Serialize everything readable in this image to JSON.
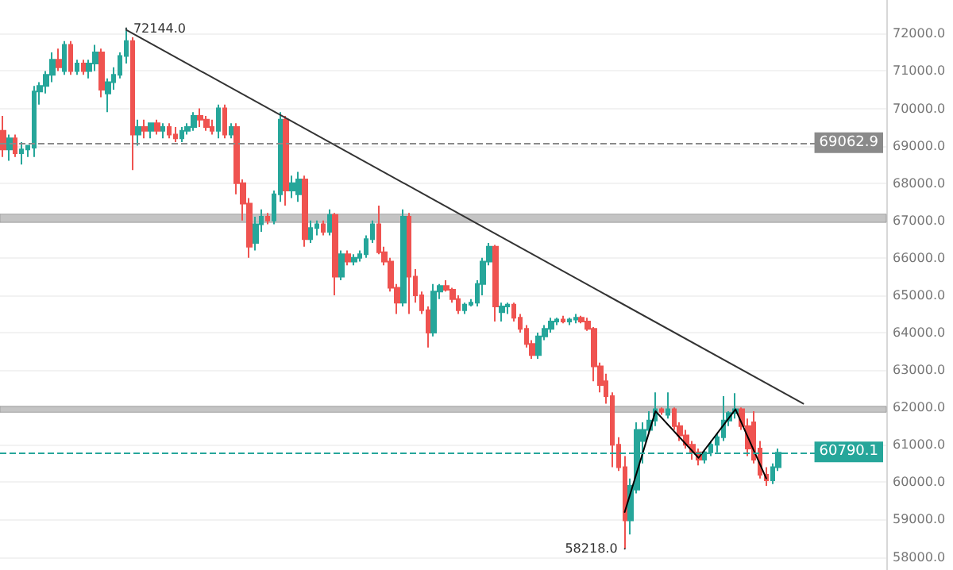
{
  "chart_data": {
    "type": "candlestick",
    "categories": [
      null,
      null,
      null,
      null,
      null,
      null,
      null,
      null,
      null,
      null,
      null,
      null,
      null,
      null,
      null,
      null,
      null,
      null,
      null,
      null,
      null,
      null,
      null,
      null,
      null,
      null,
      null,
      null,
      null,
      null,
      null,
      null,
      null,
      null,
      null,
      null,
      null,
      null,
      null,
      null,
      null,
      null,
      null,
      null,
      null,
      null,
      null,
      null,
      null,
      null,
      null,
      null,
      null,
      null,
      null,
      null,
      null,
      null,
      null,
      null,
      null,
      null,
      null,
      null,
      null,
      null,
      null,
      null,
      null,
      null,
      null,
      null,
      null,
      null,
      null,
      null,
      null,
      null,
      null,
      null,
      null,
      null,
      null,
      null,
      null,
      null,
      null,
      null,
      null,
      null,
      null,
      null,
      null,
      null,
      null,
      null,
      null,
      null,
      null,
      null,
      null,
      null,
      null,
      null,
      null,
      null,
      null,
      null,
      null,
      null,
      null,
      null,
      null,
      null,
      null,
      null,
      null,
      null,
      null,
      null,
      null,
      null,
      null,
      null,
      null,
      null,
      null,
      null,
      null,
      null,
      null,
      null,
      null,
      null,
      null,
      null,
      null,
      null,
      null,
      null,
      null,
      null,
      null,
      null
    ],
    "ohlc": [
      [
        69400,
        69800,
        68700,
        68900
      ],
      [
        68900,
        69300,
        68600,
        69200
      ],
      [
        69200,
        69300,
        68700,
        68800
      ],
      [
        68800,
        69100,
        68500,
        68900
      ],
      [
        68900,
        69000,
        68700,
        69000
      ],
      [
        68950,
        70600,
        68700,
        70450
      ],
      [
        70450,
        70700,
        70100,
        70600
      ],
      [
        70600,
        71000,
        70400,
        70900
      ],
      [
        70900,
        71500,
        70700,
        71300
      ],
      [
        71300,
        71600,
        71000,
        71100
      ],
      [
        71000,
        71800,
        70900,
        71700
      ],
      [
        71700,
        71800,
        70900,
        71000
      ],
      [
        71000,
        71300,
        70900,
        71200
      ],
      [
        71200,
        71300,
        70900,
        71000
      ],
      [
        71000,
        71300,
        70800,
        71200
      ],
      [
        71200,
        71700,
        71000,
        71500
      ],
      [
        71500,
        71600,
        70300,
        70500
      ],
      [
        70400,
        70800,
        69900,
        70700
      ],
      [
        70700,
        71100,
        70500,
        70900
      ],
      [
        70900,
        71500,
        70800,
        71400
      ],
      [
        71400,
        72144,
        71200,
        71800
      ],
      [
        71800,
        71900,
        68350,
        69300
      ],
      [
        69300,
        69700,
        69000,
        69500
      ],
      [
        69500,
        69700,
        69200,
        69400
      ],
      [
        69400,
        69600,
        69200,
        69600
      ],
      [
        69600,
        69700,
        69300,
        69400
      ],
      [
        69400,
        69600,
        69200,
        69500
      ],
      [
        69500,
        69600,
        69200,
        69300
      ],
      [
        69300,
        69500,
        69100,
        69200
      ],
      [
        69200,
        69500,
        69100,
        69400
      ],
      [
        69400,
        69600,
        69300,
        69500
      ],
      [
        69500,
        69900,
        69400,
        69800
      ],
      [
        69800,
        70000,
        69500,
        69700
      ],
      [
        69700,
        69800,
        69400,
        69500
      ],
      [
        69500,
        69700,
        69300,
        69400
      ],
      [
        69400,
        70100,
        69200,
        70000
      ],
      [
        70000,
        70100,
        69200,
        69300
      ],
      [
        69300,
        69600,
        69200,
        69500
      ],
      [
        69500,
        69600,
        67700,
        68000
      ],
      [
        68000,
        68100,
        67000,
        67450
      ],
      [
        67450,
        67600,
        66000,
        66300
      ],
      [
        66400,
        67100,
        66200,
        66900
      ],
      [
        66900,
        67300,
        66700,
        67100
      ],
      [
        67100,
        67200,
        66900,
        67000
      ],
      [
        67000,
        67800,
        66900,
        67700
      ],
      [
        67700,
        69900,
        67500,
        69700
      ],
      [
        69700,
        69800,
        67400,
        67800
      ],
      [
        67800,
        68200,
        67600,
        68000
      ],
      [
        67700,
        68300,
        67500,
        68100
      ],
      [
        68100,
        68200,
        66300,
        66500
      ],
      [
        66500,
        67000,
        66400,
        66800
      ],
      [
        66800,
        67000,
        66600,
        66900
      ],
      [
        66900,
        67000,
        66600,
        66700
      ],
      [
        66700,
        67300,
        66600,
        67150
      ],
      [
        67150,
        67200,
        65000,
        65500
      ],
      [
        65500,
        66200,
        65400,
        66100
      ],
      [
        66100,
        66200,
        65800,
        65900
      ],
      [
        65900,
        66100,
        65800,
        66000
      ],
      [
        66000,
        66200,
        65900,
        66100
      ],
      [
        66100,
        66600,
        66000,
        66500
      ],
      [
        66500,
        67000,
        66400,
        66900
      ],
      [
        66900,
        67400,
        66100,
        66150
      ],
      [
        66150,
        66300,
        65800,
        65900
      ],
      [
        65900,
        66000,
        65100,
        65200
      ],
      [
        65200,
        65300,
        64500,
        64800
      ],
      [
        64800,
        67300,
        64700,
        67100
      ],
      [
        67100,
        67200,
        64500,
        65500
      ],
      [
        65500,
        65700,
        64800,
        65000
      ],
      [
        65000,
        65100,
        64500,
        64600
      ],
      [
        64600,
        64700,
        63600,
        64000
      ],
      [
        64000,
        65300,
        63900,
        65100
      ],
      [
        65100,
        65300,
        64900,
        65250
      ],
      [
        65250,
        65400,
        65100,
        65150
      ],
      [
        65150,
        65200,
        64800,
        64900
      ],
      [
        64900,
        65000,
        64500,
        64600
      ],
      [
        64600,
        64800,
        64500,
        64750
      ],
      [
        64750,
        64900,
        64700,
        64800
      ],
      [
        64800,
        65400,
        64700,
        65300
      ],
      [
        65300,
        66000,
        65000,
        65900
      ],
      [
        65900,
        66400,
        65800,
        66300
      ],
      [
        66300,
        66350,
        64300,
        64700
      ],
      [
        64550,
        64800,
        64300,
        64700
      ],
      [
        64700,
        64800,
        64500,
        64750
      ],
      [
        64750,
        64800,
        64300,
        64400
      ],
      [
        64400,
        64500,
        64000,
        64100
      ],
      [
        64100,
        64200,
        63600,
        63700
      ],
      [
        63700,
        63800,
        63300,
        63400
      ],
      [
        63400,
        64000,
        63300,
        63900
      ],
      [
        63900,
        64200,
        63800,
        64100
      ],
      [
        64100,
        64400,
        64000,
        64300
      ],
      [
        64300,
        64400,
        64200,
        64350
      ],
      [
        64350,
        64450,
        64250,
        64300
      ],
      [
        64300,
        64400,
        64200,
        64350
      ],
      [
        64350,
        64500,
        64250,
        64400
      ],
      [
        64400,
        64450,
        64250,
        64300
      ],
      [
        64300,
        64400,
        64050,
        64100
      ],
      [
        64100,
        64150,
        62700,
        63100
      ],
      [
        63100,
        63200,
        62400,
        62600
      ],
      [
        62700,
        62900,
        62100,
        62300
      ],
      [
        62300,
        62400,
        60400,
        61000
      ],
      [
        61000,
        61200,
        60300,
        60400
      ],
      [
        60400,
        60700,
        58218,
        58980
      ],
      [
        58980,
        60100,
        58600,
        59900
      ],
      [
        59800,
        61600,
        59700,
        61400
      ],
      [
        61100,
        61600,
        60500,
        61400
      ],
      [
        61400,
        61900,
        61300,
        61650
      ],
      [
        61650,
        62400,
        61500,
        61950
      ],
      [
        61950,
        62000,
        61800,
        61880
      ],
      [
        61800,
        62400,
        61700,
        61950
      ],
      [
        61950,
        62000,
        61400,
        61500
      ],
      [
        61500,
        61600,
        61100,
        61250
      ],
      [
        61250,
        61400,
        60900,
        61000
      ],
      [
        61000,
        61100,
        60600,
        60800
      ],
      [
        60800,
        60900,
        60450,
        60600
      ],
      [
        60600,
        60850,
        60500,
        60800
      ],
      [
        60800,
        61100,
        60700,
        61000
      ],
      [
        61000,
        61300,
        60800,
        61200
      ],
      [
        61200,
        62300,
        61100,
        61650
      ],
      [
        61650,
        61900,
        61500,
        61850
      ],
      [
        61850,
        62380,
        61700,
        61950
      ],
      [
        61950,
        62000,
        61400,
        61500
      ],
      [
        61500,
        61700,
        60700,
        60900
      ],
      [
        61600,
        61900,
        60500,
        60600
      ],
      [
        60900,
        61100,
        60100,
        60200
      ],
      [
        60200,
        60400,
        59900,
        60050
      ],
      [
        60050,
        60500,
        59950,
        60400
      ],
      [
        60400,
        60900,
        60300,
        60790
      ],
      null,
      null,
      null,
      null,
      null,
      null,
      null,
      null,
      null,
      null,
      null,
      null,
      null,
      null,
      null,
      null,
      null
    ],
    "series": [
      {
        "type": "line",
        "color": "#333333",
        "values": [
          null,
          null,
          null,
          null,
          null,
          null,
          null,
          null,
          null,
          null,
          null,
          null,
          null,
          null,
          null,
          null,
          null,
          null,
          null,
          null,
          72100,
          null,
          null,
          null,
          null,
          null,
          null,
          null,
          null,
          null,
          null,
          null,
          null,
          null,
          null,
          null,
          null,
          null,
          null,
          null,
          null,
          null,
          null,
          null,
          null,
          null,
          null,
          null,
          null,
          null,
          null,
          null,
          null,
          null,
          null,
          null,
          null,
          null,
          null,
          null,
          null,
          null,
          null,
          null,
          null,
          null,
          null,
          null,
          null,
          null,
          null,
          null,
          null,
          null,
          null,
          null,
          null,
          null,
          null,
          null,
          null,
          null,
          null,
          null,
          null,
          null,
          null,
          null,
          null,
          null,
          null,
          null,
          null,
          null,
          null,
          null,
          null,
          null,
          null,
          null,
          null,
          null,
          null,
          null,
          null,
          null,
          null,
          null,
          null,
          null,
          null,
          null,
          null,
          null,
          null,
          null,
          null,
          null,
          null,
          null,
          null,
          null,
          null,
          null,
          null,
          null,
          null,
          null,
          null,
          null,
          62100,
          null,
          null,
          null,
          null,
          null,
          null,
          null,
          null,
          null,
          null,
          null,
          null,
          null
        ]
      },
      {
        "type": "line",
        "color": "#000000",
        "values": [
          null,
          null,
          null,
          null,
          null,
          null,
          null,
          null,
          null,
          null,
          null,
          null,
          null,
          null,
          null,
          null,
          null,
          null,
          null,
          null,
          null,
          null,
          null,
          null,
          null,
          null,
          null,
          null,
          null,
          null,
          null,
          null,
          null,
          null,
          null,
          null,
          null,
          null,
          null,
          null,
          null,
          null,
          null,
          null,
          null,
          null,
          null,
          null,
          null,
          null,
          null,
          null,
          null,
          null,
          null,
          null,
          null,
          null,
          null,
          null,
          null,
          null,
          null,
          null,
          null,
          null,
          null,
          null,
          null,
          null,
          null,
          null,
          null,
          null,
          null,
          null,
          null,
          null,
          null,
          null,
          null,
          null,
          null,
          null,
          null,
          null,
          null,
          null,
          null,
          null,
          null,
          null,
          null,
          null,
          null,
          null,
          null,
          null,
          null,
          null,
          null,
          59200,
          null,
          null,
          null,
          null,
          61900,
          null,
          null,
          null,
          null,
          null,
          null,
          60650,
          null,
          null,
          null,
          null,
          null,
          61950,
          null,
          null,
          null,
          null,
          60100,
          null,
          null,
          null,
          null,
          null,
          null,
          null,
          null,
          null,
          null,
          null,
          null,
          null,
          null,
          null,
          null,
          null,
          null,
          null
        ]
      }
    ],
    "ylim": [
      57650,
      72900
    ],
    "yticks": [
      {
        "value": 58000,
        "label": "58000.0"
      },
      {
        "value": 59000,
        "label": "59000.0"
      },
      {
        "value": 60000,
        "label": "60000.0"
      },
      {
        "value": 61000,
        "label": "61000.0"
      },
      {
        "value": 62000,
        "label": "62000.0"
      },
      {
        "value": 63000,
        "label": "63000.0"
      },
      {
        "value": 64000,
        "label": "64000.0"
      },
      {
        "value": 65000,
        "label": "65000.0"
      },
      {
        "value": 66000,
        "label": "66000.0"
      },
      {
        "value": 67000,
        "label": "67000.0"
      },
      {
        "value": 68000,
        "label": "68000.0"
      },
      {
        "value": 69000,
        "label": "69000.0"
      },
      {
        "value": 70000,
        "label": "70000.0"
      },
      {
        "value": 71000,
        "label": "71000.0"
      },
      {
        "value": 72000,
        "label": "72000.0"
      }
    ],
    "ref_lines": [
      {
        "axis": "y",
        "value": 69062.9,
        "label": "69062.9",
        "color": "#8a8a8a",
        "line_style": "dashed"
      },
      {
        "axis": "y",
        "value": 60790.1,
        "label": "60790.1",
        "color": "#26a69a",
        "line_style": "dashed"
      }
    ],
    "bands": [
      {
        "axis": "y",
        "from": 66950,
        "to": 67170,
        "color": "#b5b5b5"
      },
      {
        "axis": "y",
        "from": 61870,
        "to": 62030,
        "color": "#b5b5b5"
      }
    ],
    "annotations": [
      "72144.0",
      "58218.0"
    ],
    "grid": "y",
    "tick_labels": "y"
  }
}
